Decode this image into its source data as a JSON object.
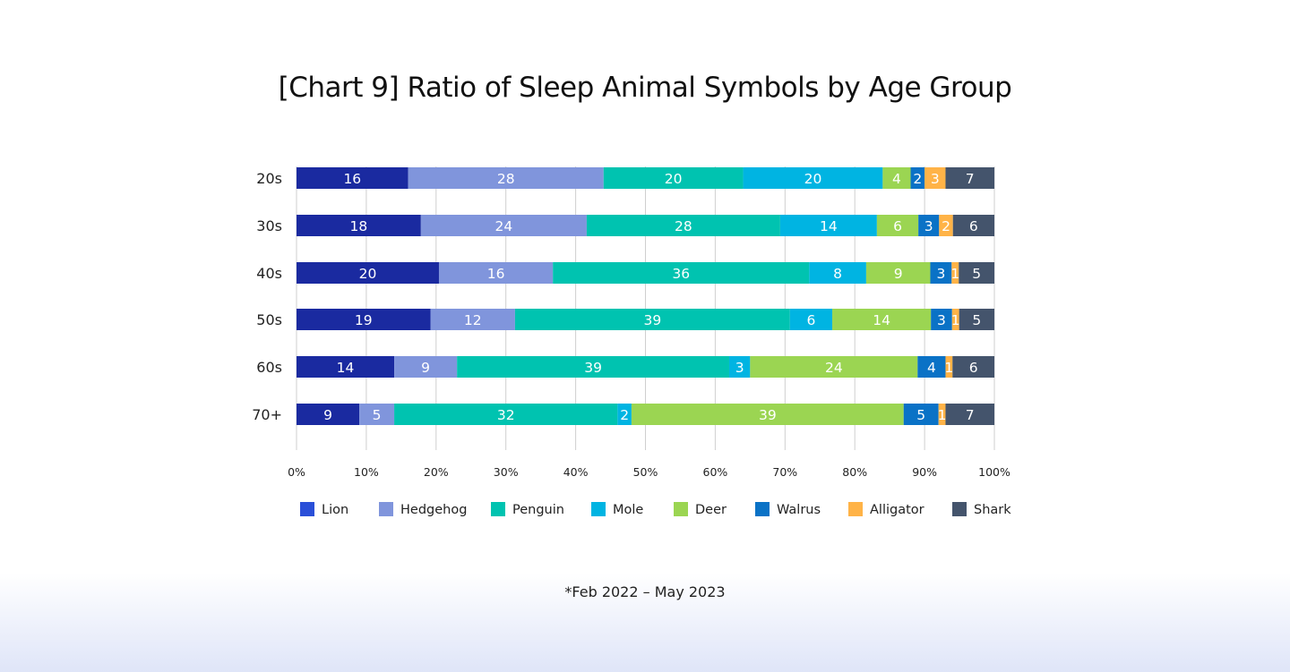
{
  "chart_data": {
    "type": "bar",
    "orientation": "horizontal",
    "stacked": true,
    "title": "[Chart 9] Ratio of Sleep Animal Symbols by Age Group",
    "categories": [
      "20s",
      "30s",
      "40s",
      "50s",
      "60s",
      "70+"
    ],
    "series": [
      {
        "name": "Lion",
        "color": "#1a2aa0",
        "legend_color": "#2a4fd8",
        "values": [
          16,
          18,
          20,
          19,
          14,
          9
        ]
      },
      {
        "name": "Hedgehog",
        "color": "#8095dc",
        "legend_color": "#8095dc",
        "values": [
          28,
          24,
          16,
          12,
          9,
          5
        ]
      },
      {
        "name": "Penguin",
        "color": "#00c3b0",
        "legend_color": "#00c3b0",
        "values": [
          20,
          28,
          36,
          39,
          39,
          32
        ]
      },
      {
        "name": "Mole",
        "color": "#00b4e2",
        "legend_color": "#00b4e2",
        "values": [
          20,
          14,
          8,
          6,
          3,
          2
        ]
      },
      {
        "name": "Deer",
        "color": "#9bd552",
        "legend_color": "#9bd552",
        "values": [
          4,
          6,
          9,
          14,
          24,
          39
        ]
      },
      {
        "name": "Walrus",
        "color": "#0a72c6",
        "legend_color": "#0a72c6",
        "values": [
          2,
          3,
          3,
          3,
          4,
          5
        ]
      },
      {
        "name": "Alligator",
        "color": "#ffb347",
        "legend_color": "#ffb347",
        "values": [
          3,
          2,
          1,
          1,
          1,
          1
        ]
      },
      {
        "name": "Shark",
        "color": "#44546c",
        "legend_color": "#44546c",
        "values": [
          7,
          6,
          5,
          5,
          6,
          7
        ]
      }
    ],
    "xlim": [
      0,
      100
    ],
    "x_ticks": [
      "0%",
      "10%",
      "20%",
      "30%",
      "40%",
      "50%",
      "60%",
      "70%",
      "80%",
      "90%",
      "100%"
    ],
    "grid": true,
    "legend_position": "bottom",
    "footnote": "*Feb 2022 – May 2023"
  }
}
